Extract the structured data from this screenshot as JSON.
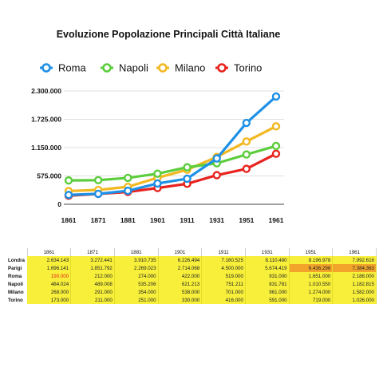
{
  "chart_data": {
    "type": "line",
    "title": "Evoluzione Popolazione Principali Città Italiane",
    "x": [
      "1861",
      "1871",
      "1881",
      "1901",
      "1911",
      "1931",
      "1951",
      "1961"
    ],
    "yticks": [
      "0",
      "575.000",
      "1.150.000",
      "1.725.000",
      "2.300.000"
    ],
    "ylim": [
      0,
      2300000
    ],
    "legend_position": "top",
    "grid": true,
    "series": [
      {
        "name": "Roma",
        "color": "#1e90e6",
        "values": [
          190000,
          212000,
          274000,
          422000,
          519000,
          931000,
          1651000,
          2188000
        ]
      },
      {
        "name": "Napoli",
        "color": "#5ccd3c",
        "values": [
          484024,
          489008,
          535206,
          621213,
          751211,
          831781,
          1010550,
          1182815
        ]
      },
      {
        "name": "Milano",
        "color": "#f2b821",
        "values": [
          268000,
          291000,
          354000,
          538000,
          701000,
          961000,
          1274000,
          1582000
        ]
      },
      {
        "name": "Torino",
        "color": "#e8231e",
        "values": [
          173000,
          211000,
          251000,
          330000,
          416000,
          591000,
          719000,
          1026000
        ]
      }
    ]
  },
  "table": {
    "header": [
      "1861",
      "1871",
      "1881",
      "1901",
      "1911",
      "1931",
      "1951",
      "1961"
    ],
    "rows": [
      {
        "city": "Londra",
        "cells": [
          "2.634.143",
          "3.272.441",
          "3.910.735",
          "6.226.494",
          "7.160.525",
          "8.110.480",
          "8.196.978",
          "7.992.616"
        ]
      },
      {
        "city": "Parigi",
        "cells": [
          "1.696.141",
          "1.851.792",
          "2.269.023",
          "2.714.068",
          "4.500.000",
          "5.674.419",
          "6.436.296",
          "7.384.363"
        ]
      },
      {
        "city": "Roma",
        "cells": [
          "190.000",
          "212.000",
          "274.000",
          "422.000",
          "519.000",
          "931.000",
          "1.651.000",
          "2.188.000"
        ]
      },
      {
        "city": "Napoli",
        "cells": [
          "484.024",
          "489.008",
          "535.206",
          "621.213",
          "751.211",
          "831.781",
          "1.010.550",
          "1.182.815"
        ]
      },
      {
        "city": "Milano",
        "cells": [
          "268.000",
          "291.000",
          "354.000",
          "538.000",
          "701.000",
          "961.000",
          "1.274.000",
          "1.582.000"
        ]
      },
      {
        "city": "Torino",
        "cells": [
          "173.000",
          "211.000",
          "251.000",
          "330.000",
          "416.000",
          "591.000",
          "719.000",
          "1.026.000"
        ]
      }
    ]
  }
}
